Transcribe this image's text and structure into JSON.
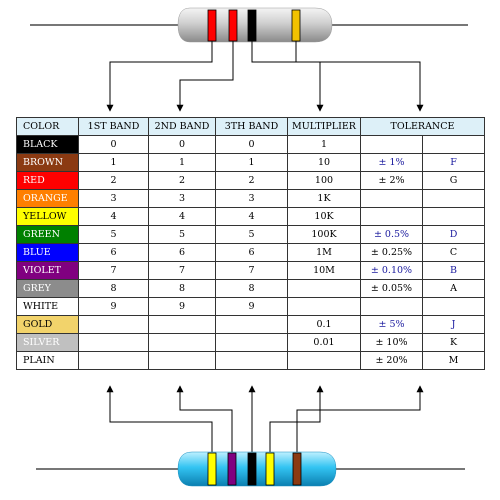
{
  "headers": {
    "color": "COLOR",
    "band1": "1ST BAND",
    "band2": "2ND BAND",
    "band3": "3TH BAND",
    "multiplier": "MULTIPLIER",
    "tolerance": "TOLERANCE"
  },
  "rows": [
    {
      "name": "BLACK",
      "bg": "#000000",
      "fg": "#ffffff",
      "b1": "0",
      "b2": "0",
      "b3": "0",
      "mult": "1",
      "tol": "",
      "tolcode": "",
      "tolblue": false
    },
    {
      "name": "BROWN",
      "bg": "#8b3a12",
      "fg": "#ffffff",
      "b1": "1",
      "b2": "1",
      "b3": "1",
      "mult": "10",
      "tol": "± 1%",
      "tolcode": "F",
      "tolblue": true
    },
    {
      "name": "RED",
      "bg": "#ff0000",
      "fg": "#ffffff",
      "b1": "2",
      "b2": "2",
      "b3": "2",
      "mult": "100",
      "tol": "± 2%",
      "tolcode": "G",
      "tolblue": false
    },
    {
      "name": "ORANGE",
      "bg": "#ff7f00",
      "fg": "#ffffff",
      "b1": "3",
      "b2": "3",
      "b3": "3",
      "mult": "1K",
      "tol": "",
      "tolcode": "",
      "tolblue": false
    },
    {
      "name": "YELLOW",
      "bg": "#ffff00",
      "fg": "#000000",
      "b1": "4",
      "b2": "4",
      "b3": "4",
      "mult": "10K",
      "tol": "",
      "tolcode": "",
      "tolblue": false
    },
    {
      "name": "GREEN",
      "bg": "#008000",
      "fg": "#ffffff",
      "b1": "5",
      "b2": "5",
      "b3": "5",
      "mult": "100K",
      "tol": "± 0.5%",
      "tolcode": "D",
      "tolblue": true
    },
    {
      "name": "BLUE",
      "bg": "#0000ff",
      "fg": "#ffffff",
      "b1": "6",
      "b2": "6",
      "b3": "6",
      "mult": "1M",
      "tol": "± 0.25%",
      "tolcode": "C",
      "tolblue": false
    },
    {
      "name": "VIOLET",
      "bg": "#800080",
      "fg": "#ffffff",
      "b1": "7",
      "b2": "7",
      "b3": "7",
      "mult": "10M",
      "tol": "± 0.10%",
      "tolcode": "B",
      "tolblue": true
    },
    {
      "name": "GREY",
      "bg": "#8c8c8c",
      "fg": "#ffffff",
      "b1": "8",
      "b2": "8",
      "b3": "8",
      "mult": "",
      "tol": "± 0.05%",
      "tolcode": "A",
      "tolblue": false
    },
    {
      "name": "WHITE",
      "bg": "#ffffff",
      "fg": "#000000",
      "b1": "9",
      "b2": "9",
      "b3": "9",
      "mult": "",
      "tol": "",
      "tolcode": "",
      "tolblue": false
    },
    {
      "name": "GOLD",
      "bg": "#f2d36b",
      "fg": "#000000",
      "b1": "",
      "b2": "",
      "b3": "",
      "mult": "0.1",
      "tol": "± 5%",
      "tolcode": "J",
      "tolblue": true
    },
    {
      "name": "SILVER",
      "bg": "#c0c0c0",
      "fg": "#ffffff",
      "b1": "",
      "b2": "",
      "b3": "",
      "mult": "0.01",
      "tol": "± 10%",
      "tolcode": "K",
      "tolblue": false
    },
    {
      "name": "PLAIN",
      "bg": "#ffffff",
      "fg": "#000000",
      "b1": "",
      "b2": "",
      "b3": "",
      "mult": "",
      "tol": "± 20%",
      "tolcode": "M",
      "tolblue": false
    }
  ],
  "top_resistor": {
    "body_color": "#c8c8c8",
    "bands": [
      "#ff0000",
      "#ff0000",
      "#000000",
      "#f2c200"
    ]
  },
  "bottom_resistor": {
    "body_color": "#33c4f2",
    "bands": [
      "#ffff00",
      "#800080",
      "#000000",
      "#ffff00",
      "#8b3a12"
    ]
  }
}
